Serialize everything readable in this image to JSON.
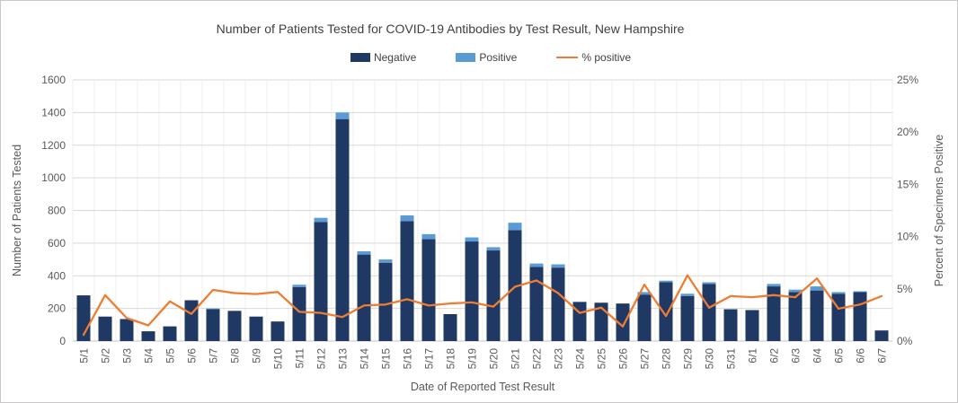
{
  "window": {
    "background": "#ffffff",
    "border_color": "#c9c7c7"
  },
  "chart_data": {
    "type": "bar",
    "subtype": "stacked-bar-with-line",
    "title": "Number of Patients Tested for COVID-19 Antibodies by Test Result, New Hampshire",
    "xlabel": "Date of Reported Test Result",
    "ylabel": "Number of Patients Tested",
    "y2label": "Percent of Specimens Positive",
    "ylim": [
      0,
      1600
    ],
    "y2lim": [
      0,
      25
    ],
    "yticks": [
      "0",
      "200",
      "400",
      "600",
      "800",
      "1000",
      "1200",
      "1400",
      "1600"
    ],
    "y2ticks": [
      "0%",
      "5%",
      "10%",
      "15%",
      "20%",
      "25%"
    ],
    "grid": true,
    "legend_position": "top",
    "categories": [
      "5/1",
      "5/2",
      "5/3",
      "5/4",
      "5/5",
      "5/6",
      "5/7",
      "5/8",
      "5/9",
      "5/10",
      "5/11",
      "5/12",
      "5/13",
      "5/14",
      "5/15",
      "5/16",
      "5/17",
      "5/18",
      "5/19",
      "5/20",
      "5/21",
      "5/22",
      "5/23",
      "5/24",
      "5/25",
      "5/26",
      "5/27",
      "5/28",
      "5/29",
      "5/30",
      "5/31",
      "6/1",
      "6/2",
      "6/3",
      "6/4",
      "6/5",
      "6/6",
      "6/7"
    ],
    "series": [
      {
        "name": "Negative",
        "type": "bar",
        "color": "#1f3864",
        "values": [
          280,
          150,
          135,
          60,
          90,
          250,
          195,
          185,
          150,
          120,
          330,
          730,
          1360,
          530,
          480,
          735,
          625,
          165,
          610,
          555,
          680,
          455,
          450,
          240,
          235,
          230,
          285,
          360,
          275,
          350,
          195,
          190,
          335,
          300,
          310,
          290,
          300,
          65
        ]
      },
      {
        "name": "Positive",
        "type": "bar",
        "color": "#5b9bd5",
        "values": [
          0,
          0,
          0,
          0,
          0,
          0,
          5,
          0,
          0,
          0,
          15,
          25,
          40,
          20,
          20,
          35,
          30,
          0,
          25,
          20,
          45,
          20,
          20,
          0,
          0,
          0,
          15,
          10,
          15,
          10,
          0,
          0,
          15,
          15,
          25,
          10,
          5,
          0
        ]
      },
      {
        "name": "% positive",
        "type": "line",
        "axis": "secondary",
        "color": "#ed7d31",
        "values": [
          0.6,
          4.4,
          2.2,
          1.5,
          3.8,
          2.6,
          4.9,
          4.6,
          4.5,
          4.7,
          2.8,
          2.7,
          2.3,
          3.4,
          3.5,
          4.0,
          3.4,
          3.6,
          3.7,
          3.3,
          5.2,
          5.8,
          4.6,
          2.7,
          3.2,
          1.4,
          5.4,
          2.4,
          6.3,
          3.2,
          4.3,
          4.2,
          4.4,
          4.2,
          6.0,
          3.1,
          3.5,
          4.3
        ]
      }
    ],
    "colors": {
      "gridline": "#d9d9d9",
      "vertical_gridline": "#efefef",
      "axis_text": "#595959",
      "title_text": "#404040"
    }
  }
}
